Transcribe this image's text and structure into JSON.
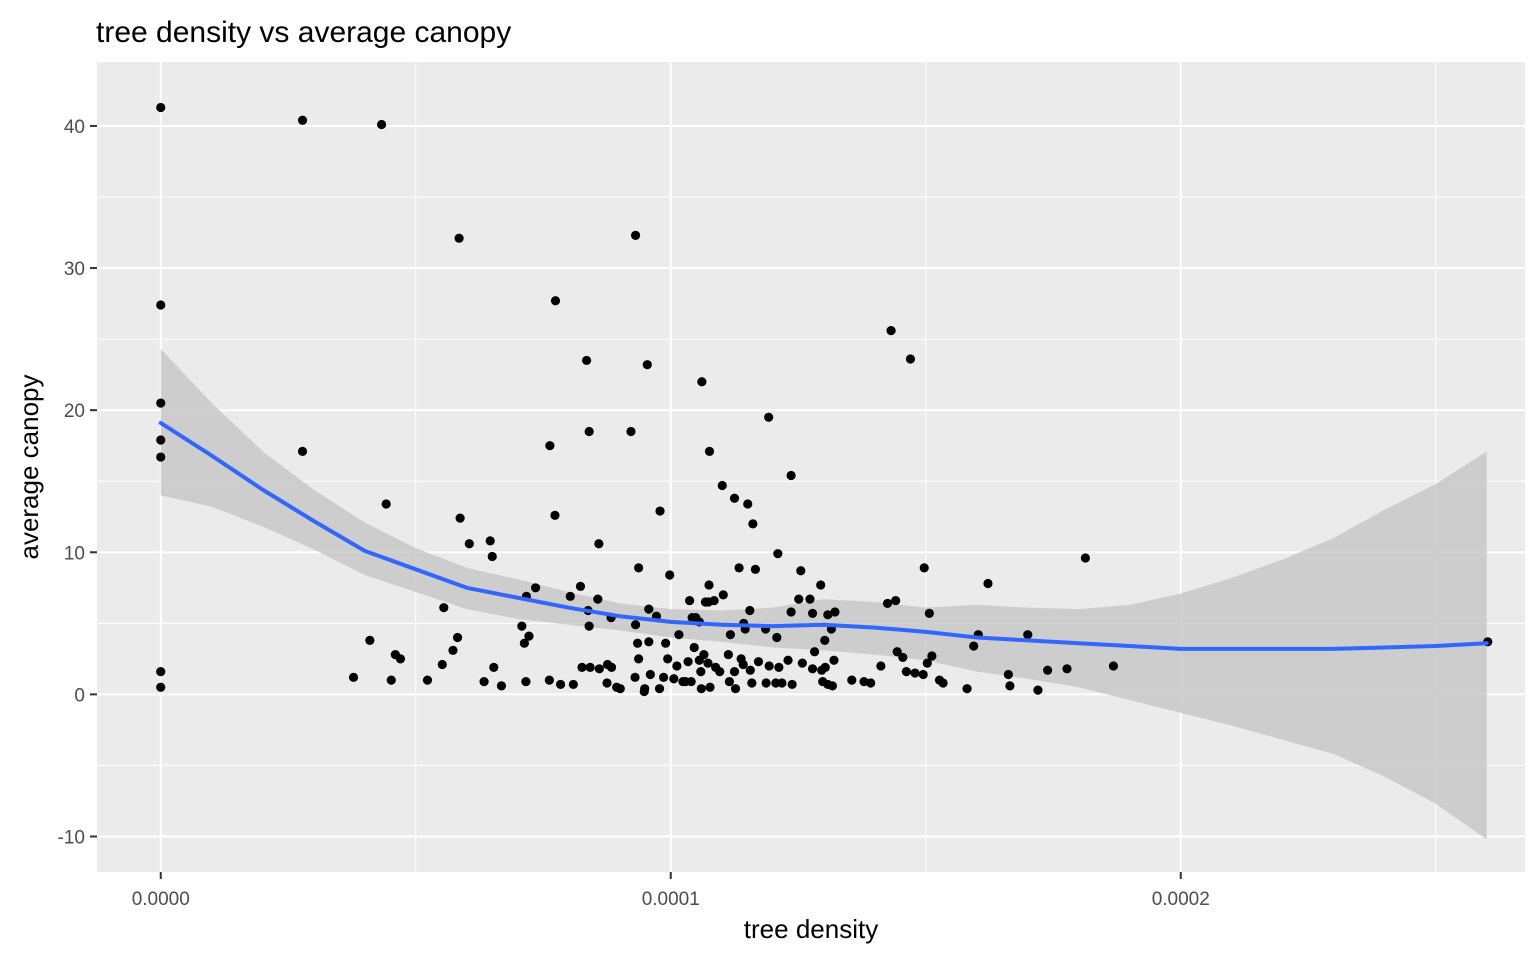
{
  "chart_data": {
    "type": "scatter",
    "title": "tree density vs average canopy",
    "xlabel": "tree density",
    "ylabel": "average canopy",
    "xlim": [
      -1.25e-05,
      0.0002675
    ],
    "ylim": [
      -12.5,
      44.5
    ],
    "x_ticks": [
      {
        "value": 0,
        "label": "0.0000"
      },
      {
        "value": 0.0001,
        "label": "0.0001"
      },
      {
        "value": 0.0002,
        "label": "0.0002"
      }
    ],
    "y_ticks": [
      {
        "value": -10,
        "label": "-10"
      },
      {
        "value": 0,
        "label": "0"
      },
      {
        "value": 10,
        "label": "10"
      },
      {
        "value": 20,
        "label": "20"
      },
      {
        "value": 30,
        "label": "30"
      },
      {
        "value": 40,
        "label": "40"
      }
    ],
    "grid": true,
    "colors": {
      "panel": "#ebebeb",
      "grid": "#ffffff",
      "points": "#000000",
      "smooth_line": "#3366ff",
      "confidence_band": "#c8c8c8"
    },
    "points": [
      [
        0.0,
        41.3
      ],
      [
        0.0,
        27.4
      ],
      [
        0.0,
        20.5
      ],
      [
        0.0,
        17.9
      ],
      [
        0.0,
        16.7
      ],
      [
        0.0,
        1.6
      ],
      [
        0.0,
        0.5
      ],
      [
        2.78e-05,
        40.4
      ],
      [
        4.33e-05,
        40.1
      ],
      [
        5.85e-05,
        32.1
      ],
      [
        2.78e-05,
        17.1
      ],
      [
        4.42e-05,
        13.4
      ],
      [
        5.87e-05,
        12.4
      ],
      [
        6.05e-05,
        10.6
      ],
      [
        6.46e-05,
        10.8
      ],
      [
        6.5e-05,
        9.7
      ],
      [
        5.55e-05,
        6.1
      ],
      [
        5.82e-05,
        4.0
      ],
      [
        5.73e-05,
        3.1
      ],
      [
        5.52e-05,
        2.1
      ],
      [
        4.1e-05,
        3.8
      ],
      [
        4.6e-05,
        2.8
      ],
      [
        4.7e-05,
        2.5
      ],
      [
        3.78e-05,
        1.2
      ],
      [
        4.52e-05,
        1.0
      ],
      [
        5.23e-05,
        1.0
      ],
      [
        6.34e-05,
        0.9
      ],
      [
        6.53e-05,
        1.9
      ],
      [
        6.68e-05,
        0.6
      ],
      [
        7.16e-05,
        0.9
      ],
      [
        7.35e-05,
        7.5
      ],
      [
        7.22e-05,
        4.1
      ],
      [
        7.13e-05,
        3.6
      ],
      [
        7.08e-05,
        4.8
      ],
      [
        7.17e-05,
        6.9
      ],
      [
        7.62e-05,
        1.0
      ],
      [
        7.84e-05,
        0.7
      ],
      [
        8.09e-05,
        0.7
      ],
      [
        7.74e-05,
        27.7
      ],
      [
        7.63e-05,
        17.5
      ],
      [
        7.73e-05,
        12.6
      ],
      [
        8.35e-05,
        23.5
      ],
      [
        8.4e-05,
        18.5
      ],
      [
        8.59e-05,
        10.6
      ],
      [
        8.03e-05,
        6.9
      ],
      [
        8.38e-05,
        5.9
      ],
      [
        8.57e-05,
        6.7
      ],
      [
        8.4e-05,
        4.8
      ],
      [
        8.23e-05,
        7.6
      ],
      [
        8.26e-05,
        1.9
      ],
      [
        8.42e-05,
        1.9
      ],
      [
        8.6e-05,
        1.8
      ],
      [
        8.76e-05,
        2.1
      ],
      [
        8.84e-05,
        1.9
      ],
      [
        8.75e-05,
        0.8
      ],
      [
        8.94e-05,
        0.5
      ],
      [
        9.01e-05,
        0.4
      ],
      [
        8.83e-05,
        5.4
      ],
      [
        9.22e-05,
        18.5
      ],
      [
        9.31e-05,
        32.3
      ],
      [
        9.54e-05,
        23.2
      ],
      [
        9.79e-05,
        12.9
      ],
      [
        9.37e-05,
        8.9
      ],
      [
        9.31e-05,
        4.9
      ],
      [
        9.57e-05,
        6.0
      ],
      [
        9.72e-05,
        5.5
      ],
      [
        9.35e-05,
        3.6
      ],
      [
        9.57e-05,
        3.7
      ],
      [
        9.37e-05,
        2.5
      ],
      [
        9.3e-05,
        1.2
      ],
      [
        9.49e-05,
        0.4
      ],
      [
        9.48e-05,
        0.2
      ],
      [
        9.6e-05,
        1.4
      ],
      [
        9.78e-05,
        0.4
      ],
      [
        9.86e-05,
        1.2
      ],
      [
        9.98e-05,
        8.4
      ],
      [
        9.9e-05,
        3.6
      ],
      [
        9.94e-05,
        2.5
      ],
      [
        0.0001006,
        1.1
      ],
      [
        0.0001012,
        2.0
      ],
      [
        0.0001016,
        4.2
      ],
      [
        0.0001024,
        0.9
      ],
      [
        0.0001037,
        6.6
      ],
      [
        0.0001042,
        5.4
      ],
      [
        0.0001049,
        5.4
      ],
      [
        0.0001056,
        5.1
      ],
      [
        0.0001068,
        6.5
      ],
      [
        0.0001061,
        22.0
      ],
      [
        0.0001076,
        17.1
      ],
      [
        0.0001101,
        14.7
      ],
      [
        0.0001125,
        13.8
      ],
      [
        0.0001151,
        13.4
      ],
      [
        0.0001161,
        12.0
      ],
      [
        0.0001192,
        19.5
      ],
      [
        0.000121,
        9.9
      ],
      [
        0.0001134,
        8.9
      ],
      [
        0.0001166,
        8.8
      ],
      [
        0.0001075,
        7.7
      ],
      [
        0.0001103,
        7.0
      ],
      [
        0.0001074,
        6.5
      ],
      [
        0.0001085,
        6.6
      ],
      [
        0.0001117,
        4.2
      ],
      [
        0.0001143,
        5.0
      ],
      [
        0.0001146,
        4.6
      ],
      [
        0.0001155,
        5.9
      ],
      [
        0.0001186,
        4.6
      ],
      [
        0.0001208,
        4.0
      ],
      [
        0.0001046,
        3.3
      ],
      [
        0.0001065,
        2.8
      ],
      [
        0.0001056,
        2.4
      ],
      [
        0.0001034,
        2.3
      ],
      [
        0.0001059,
        1.6
      ],
      [
        0.0001073,
        2.2
      ],
      [
        0.0001088,
        1.9
      ],
      [
        0.0001096,
        1.6
      ],
      [
        0.0001113,
        2.8
      ],
      [
        0.0001125,
        1.6
      ],
      [
        0.0001138,
        2.5
      ],
      [
        0.0001142,
        2.1
      ],
      [
        0.0001156,
        1.7
      ],
      [
        0.0001172,
        2.3
      ],
      [
        0.0001193,
        2.0
      ],
      [
        0.0001029,
        0.9
      ],
      [
        0.000104,
        0.9
      ],
      [
        0.000106,
        0.4
      ],
      [
        0.0001077,
        0.5
      ],
      [
        0.0001115,
        0.9
      ],
      [
        0.0001127,
        0.4
      ],
      [
        0.0001159,
        0.8
      ],
      [
        0.0001187,
        0.8
      ],
      [
        0.0001206,
        0.8
      ],
      [
        0.0001236,
        15.4
      ],
      [
        0.0001255,
        8.7
      ],
      [
        0.0001273,
        6.7
      ],
      [
        0.0001294,
        7.7
      ],
      [
        0.0001251,
        6.7
      ],
      [
        0.0001236,
        5.8
      ],
      [
        0.0001278,
        5.7
      ],
      [
        0.0001308,
        5.6
      ],
      [
        0.0001322,
        5.8
      ],
      [
        0.0001282,
        3.0
      ],
      [
        0.0001302,
        3.8
      ],
      [
        0.0001315,
        4.6
      ],
      [
        0.000132,
        2.4
      ],
      [
        0.0001296,
        1.7
      ],
      [
        0.0001303,
        1.9
      ],
      [
        0.0001278,
        1.8
      ],
      [
        0.0001258,
        2.2
      ],
      [
        0.000123,
        2.4
      ],
      [
        0.0001212,
        1.9
      ],
      [
        0.0001218,
        0.8
      ],
      [
        0.0001238,
        0.7
      ],
      [
        0.0001298,
        0.9
      ],
      [
        0.0001308,
        0.7
      ],
      [
        0.0001317,
        0.6
      ],
      [
        0.0001355,
        1.0
      ],
      [
        0.0001379,
        0.9
      ],
      [
        0.0001392,
        0.8
      ],
      [
        0.0001432,
        25.6
      ],
      [
        0.000147,
        23.6
      ],
      [
        0.0001497,
        8.9
      ],
      [
        0.0001441,
        6.6
      ],
      [
        0.0001425,
        6.4
      ],
      [
        0.0001507,
        5.7
      ],
      [
        0.0001444,
        3.0
      ],
      [
        0.0001455,
        2.6
      ],
      [
        0.0001412,
        2.0
      ],
      [
        0.0001462,
        1.6
      ],
      [
        0.0001479,
        1.5
      ],
      [
        0.0001495,
        1.4
      ],
      [
        0.0001512,
        2.7
      ],
      [
        0.0001503,
        2.2
      ],
      [
        0.0001527,
        1.0
      ],
      [
        0.0001534,
        0.8
      ],
      [
        0.0001581,
        0.4
      ],
      [
        0.0001622,
        7.8
      ],
      [
        0.0001594,
        3.4
      ],
      [
        0.0001603,
        4.2
      ],
      [
        0.0001662,
        1.4
      ],
      [
        0.0001665,
        0.6
      ],
      [
        0.00017,
        4.2
      ],
      [
        0.000172,
        0.3
      ],
      [
        0.0001739,
        1.7
      ],
      [
        0.0001777,
        1.8
      ],
      [
        0.0001813,
        9.6
      ],
      [
        0.0001868,
        2.0
      ],
      [
        0.0002602,
        3.7
      ]
    ],
    "smooth_line": [
      [
        0.0,
        19.1
      ],
      [
        1e-05,
        16.8
      ],
      [
        2e-05,
        14.4
      ],
      [
        3e-05,
        12.2
      ],
      [
        4e-05,
        10.1
      ],
      [
        5e-05,
        8.8
      ],
      [
        6e-05,
        7.5
      ],
      [
        7e-05,
        6.8
      ],
      [
        8e-05,
        6.1
      ],
      [
        9e-05,
        5.5
      ],
      [
        0.0001,
        5.1
      ],
      [
        0.00011,
        4.9
      ],
      [
        0.00012,
        4.8
      ],
      [
        0.00013,
        4.9
      ],
      [
        0.00014,
        4.7
      ],
      [
        0.00015,
        4.4
      ],
      [
        0.00016,
        4.0
      ],
      [
        0.00017,
        3.8
      ],
      [
        0.00018,
        3.6
      ],
      [
        0.00019,
        3.4
      ],
      [
        0.0002,
        3.2
      ],
      [
        0.00021,
        3.2
      ],
      [
        0.00022,
        3.2
      ],
      [
        0.00023,
        3.2
      ],
      [
        0.00024,
        3.3
      ],
      [
        0.00025,
        3.4
      ],
      [
        0.00026,
        3.6
      ]
    ],
    "band_upper": [
      [
        0.0,
        24.3
      ],
      [
        1e-05,
        20.5
      ],
      [
        2e-05,
        17.1
      ],
      [
        3e-05,
        14.4
      ],
      [
        4e-05,
        12.1
      ],
      [
        5e-05,
        10.3
      ],
      [
        6e-05,
        8.9
      ],
      [
        7e-05,
        8.1
      ],
      [
        8e-05,
        7.2
      ],
      [
        9e-05,
        6.4
      ],
      [
        0.0001,
        6.0
      ],
      [
        0.00011,
        5.9
      ],
      [
        0.00012,
        6.1
      ],
      [
        0.00013,
        6.7
      ],
      [
        0.00014,
        6.5
      ],
      [
        0.00015,
        6.1
      ],
      [
        0.00016,
        6.3
      ],
      [
        0.00017,
        6.1
      ],
      [
        0.00018,
        6.0
      ],
      [
        0.00019,
        6.3
      ],
      [
        0.0002,
        7.1
      ],
      [
        0.00021,
        8.2
      ],
      [
        0.00022,
        9.5
      ],
      [
        0.00023,
        11.0
      ],
      [
        0.00024,
        13.0
      ],
      [
        0.00025,
        14.8
      ],
      [
        0.00026,
        17.1
      ]
    ],
    "band_lower": [
      [
        0.0,
        14.0
      ],
      [
        1e-05,
        13.2
      ],
      [
        2e-05,
        11.8
      ],
      [
        3e-05,
        10.2
      ],
      [
        4e-05,
        8.4
      ],
      [
        5e-05,
        7.2
      ],
      [
        6e-05,
        6.0
      ],
      [
        7e-05,
        5.3
      ],
      [
        8e-05,
        4.9
      ],
      [
        9e-05,
        4.5
      ],
      [
        0.0001,
        4.0
      ],
      [
        0.00011,
        3.7
      ],
      [
        0.00012,
        3.3
      ],
      [
        0.00013,
        3.1
      ],
      [
        0.00014,
        2.8
      ],
      [
        0.00015,
        2.4
      ],
      [
        0.00016,
        1.6
      ],
      [
        0.00017,
        1.1
      ],
      [
        0.00018,
        0.5
      ],
      [
        0.00019,
        -0.4
      ],
      [
        0.0002,
        -1.3
      ],
      [
        0.00021,
        -2.2
      ],
      [
        0.00022,
        -3.2
      ],
      [
        0.00023,
        -4.2
      ],
      [
        0.00024,
        -5.8
      ],
      [
        0.00025,
        -7.7
      ],
      [
        0.00026,
        -10.2
      ]
    ]
  }
}
